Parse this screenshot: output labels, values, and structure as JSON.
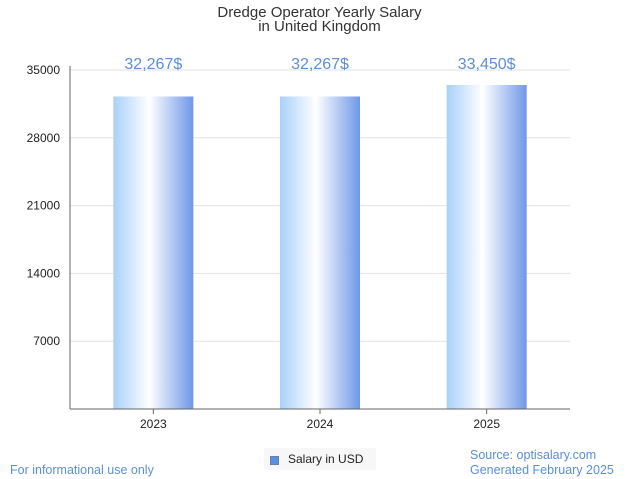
{
  "chart_data": {
    "type": "bar",
    "title_line1": "Dredge Operator Yearly Salary",
    "title_line2": "in United Kingdom",
    "categories": [
      "2023",
      "2024",
      "2025"
    ],
    "series": [
      {
        "name": "Salary in USD",
        "values": [
          32267,
          32267,
          33450
        ],
        "labels": [
          "32,267$",
          "32,267$",
          "33,450$"
        ]
      }
    ],
    "ylim": [
      0,
      35000
    ],
    "yticks": [
      7000,
      14000,
      21000,
      28000,
      35000
    ],
    "grid": true,
    "legend_placement": "bottom-center"
  },
  "colors": {
    "bar_light": "#e8f4ff",
    "bar_mid": "#a8cdf7",
    "bar_dark": "#6e9ae6",
    "label": "#5b8fd6",
    "grid": "#e2e2e2",
    "axis": "#666666"
  },
  "legend": {
    "label": "Salary in USD"
  },
  "footer": {
    "disclaimer": "For informational use only",
    "source": "Source: optisalary.com",
    "generated": "Generated February 2025"
  }
}
